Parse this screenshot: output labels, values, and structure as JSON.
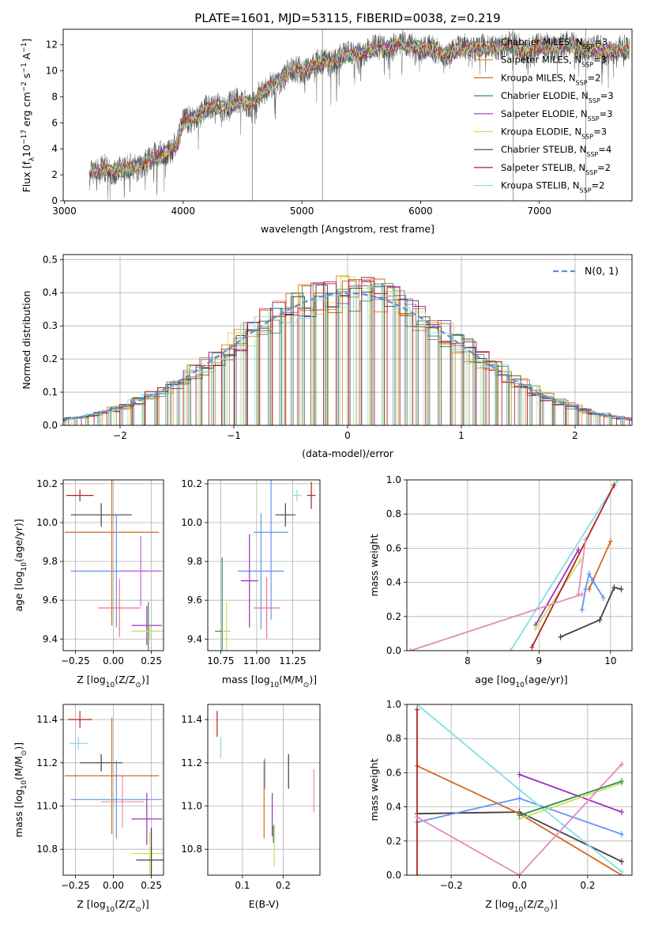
{
  "figure": {
    "title": "PLATE=1601, MJD=53115, FIBERID=0038, z=0.219"
  },
  "legend_labels": [
    "Chabrier MILES, N",
    "Salpeter MILES, N",
    "Kroupa MILES, N",
    "Chabrier ELODIE, N",
    "Salpeter ELODIE, N",
    "Kroupa ELODIE, N",
    "Chabrier STELIB, N",
    "Salpeter STELIB, N",
    "Kroupa STELIB, N"
  ],
  "legend_sub": "SSP",
  "legend_nssp": [
    "=3",
    "=3",
    "=2",
    "=3",
    "=3",
    "=3",
    "=4",
    "=2",
    "=2"
  ],
  "model_colors": [
    "#808080",
    "#ff7f0e",
    "#d2691e",
    "#2e8b57",
    "#9b30c0",
    "#c8e05a",
    "#404040",
    "#b22222",
    "#87dce8"
  ],
  "chart_data": [
    {
      "type": "line",
      "panel": "spectrum",
      "xlabel": "wavelength [Angstrom, rest frame]",
      "ylabel": "Flux [f",
      "ylabel_rest": "10",
      "ylabel_exp": "−17",
      "ylabel_unit": " erg cm",
      "ylabel_unit_exp": "−2",
      "ylabel_unit2": " s",
      "ylabel_unit2_exp": "−1",
      "ylabel_unit3": " A",
      "ylabel_unit3_exp": "−1",
      "xlim": [
        2990,
        7780
      ],
      "ylim": [
        0,
        13.2
      ],
      "xticks": [
        "3000",
        "4000",
        "5000",
        "6000",
        "7000"
      ],
      "yticks": [
        "0",
        "2",
        "4",
        "6",
        "8",
        "10",
        "12"
      ],
      "x": [
        3200,
        3350,
        3500,
        3650,
        3800,
        3950,
        4000,
        4150,
        4300,
        4450,
        4600,
        4750,
        4900,
        5050,
        5200,
        5350,
        5500,
        5650,
        5800,
        5950,
        6100,
        6250,
        6400,
        6550,
        6700,
        6850,
        7000,
        7150,
        7300,
        7450
      ],
      "values": [
        2.0,
        2.5,
        2.3,
        2.8,
        3.5,
        4.3,
        6.0,
        6.8,
        7.3,
        7.5,
        7.7,
        9.0,
        9.8,
        10.3,
        10.6,
        11.1,
        11.4,
        11.7,
        12.0,
        11.9,
        11.5,
        11.3,
        11.9,
        11.6,
        12.0,
        11.7,
        11.8,
        12.0,
        11.9,
        11.6
      ]
    },
    {
      "type": "bar",
      "panel": "residuals",
      "xlabel": "(data-model)/error",
      "ylabel": "Normed distribution",
      "xlim": [
        -2.5,
        2.5
      ],
      "ylim": [
        0,
        0.515
      ],
      "xticks": [
        "−2",
        "−1",
        "0",
        "1",
        "2"
      ],
      "yticks": [
        "0.0",
        "0.1",
        "0.2",
        "0.3",
        "0.4",
        "0.5"
      ],
      "reference_label": "N(0, 1)",
      "reference": "normal pdf, mean 0, sigma 1"
    },
    {
      "type": "scatter",
      "panel": "age_vs_Z",
      "xlabel": "Z [log",
      "xlabel_sub": "10",
      "xlabel_rest": "(Z/Z",
      "xlabel_sun": "⊙",
      "xlabel_end": ")]",
      "ylabel": "age  [log",
      "ylabel_sub": "10",
      "ylabel_rest": "(age/yr)]",
      "xlim": [
        -0.33,
        0.33
      ],
      "ylim": [
        9.34,
        10.22
      ],
      "xticks": [
        "−0.25",
        "0.00",
        "0.25"
      ],
      "yticks": [
        "9.4",
        "9.6",
        "9.8",
        "10.0",
        "10.2"
      ],
      "points": [
        {
          "x": -0.22,
          "xerr": 0.09,
          "y": 10.14,
          "yerr": 0.03
        },
        {
          "x": -0.08,
          "xerr": 0.2,
          "y": 10.04,
          "yerr": 0.06
        },
        {
          "x": -0.01,
          "xerr": 0.31,
          "y": 9.95,
          "yerr": 0.48
        },
        {
          "x": 0.02,
          "xerr": 0.3,
          "y": 9.75,
          "yerr": 0.29
        },
        {
          "x": 0.04,
          "xerr": 0.14,
          "y": 9.56,
          "yerr": 0.15
        },
        {
          "x": 0.18,
          "xerr": 0.13,
          "y": 9.75,
          "yerr": 0.18
        },
        {
          "x": 0.22,
          "xerr": 0.1,
          "y": 9.47,
          "yerr": 0.1
        },
        {
          "x": 0.23,
          "xerr": 0.08,
          "y": 9.44,
          "yerr": 0.15
        },
        {
          "x": 0.24,
          "xerr": 0.12,
          "y": 9.44,
          "yerr": 0.04
        }
      ],
      "point_colors": [
        "#b22222",
        "#404040",
        "#d2691e",
        "#6495ed",
        "#ff6b8a",
        "#c060e0",
        "#9b30c0",
        "#2e8b57",
        "#c8e05a"
      ]
    },
    {
      "type": "scatter",
      "panel": "age_vs_mass",
      "xlabel": "mass [log",
      "xlabel_sub": "10",
      "xlabel_rest": "(M/M",
      "xlabel_sun": "⊙",
      "xlabel_end": ")]",
      "xlim": [
        10.66,
        11.44
      ],
      "ylim": [
        9.34,
        10.22
      ],
      "xticks": [
        "10.75",
        "11.00",
        "11.25"
      ],
      "yticks": [
        "9.4",
        "9.6",
        "9.8",
        "10.0",
        "10.2"
      ],
      "points": [
        {
          "x": 11.38,
          "xerr": 0.03,
          "y": 10.14,
          "yerr": 0.07
        },
        {
          "x": 11.2,
          "xerr": 0.07,
          "y": 10.04,
          "yerr": 0.06
        },
        {
          "x": 11.28,
          "xerr": 0.03,
          "y": 10.14,
          "yerr": 0.03
        },
        {
          "x": 11.1,
          "xerr": 0.12,
          "y": 9.95,
          "yerr": 0.45
        },
        {
          "x": 11.03,
          "xerr": 0.16,
          "y": 9.75,
          "yerr": 0.3
        },
        {
          "x": 11.07,
          "xerr": 0.09,
          "y": 9.56,
          "yerr": 0.16
        },
        {
          "x": 10.95,
          "xerr": 0.06,
          "y": 9.7,
          "yerr": 0.24
        },
        {
          "x": 10.76,
          "xerr": 0.05,
          "y": 9.44,
          "yerr": 0.38
        },
        {
          "x": 10.79,
          "xerr": 0.03,
          "y": 9.44,
          "yerr": 0.15
        }
      ],
      "point_colors": [
        "#b22222",
        "#404040",
        "#87dce8",
        "#6495ed",
        "#6495ed",
        "#ff6b8a",
        "#9b30c0",
        "#2e8b57",
        "#c8e05a"
      ]
    },
    {
      "type": "line",
      "panel": "massweight_vs_age",
      "xlabel": "age  [log",
      "xlabel_sub": "10",
      "xlabel_rest": "(age/yr)]",
      "ylabel": "mass weight",
      "xlim": [
        7.15,
        10.3
      ],
      "ylim": [
        0,
        1
      ],
      "xticks": [
        "8",
        "9",
        "10"
      ],
      "yticks": [
        "0.0",
        "0.2",
        "0.4",
        "0.6",
        "0.8",
        "1.0"
      ],
      "series": [
        {
          "x": [
            9.3,
            9.85,
            10.05,
            10.15
          ],
          "values": [
            0.08,
            0.18,
            0.37,
            0.36
          ]
        },
        {
          "x": [
            9.7,
            10.0
          ],
          "values": [
            0.36,
            0.64
          ]
        },
        {
          "x": [
            9.6,
            9.65,
            9.7,
            9.75,
            9.9
          ],
          "values": [
            0.24,
            0.36,
            0.45,
            0.41,
            0.31
          ]
        },
        {
          "x": [
            8.95,
            9.55
          ],
          "values": [
            0.15,
            0.59
          ]
        },
        {
          "x": [
            8.95,
            9.58
          ],
          "values": [
            0.13,
            0.53
          ]
        },
        {
          "x": [
            8.6,
            10.1
          ],
          "values": [
            0.0,
            1.0
          ]
        },
        {
          "x": [
            8.9,
            10.05
          ],
          "values": [
            0.02,
            0.97
          ]
        },
        {
          "x": [
            7.2,
            9.6
          ],
          "values": [
            0.0,
            0.33
          ]
        },
        {
          "x": [
            9.55,
            9.65
          ],
          "values": [
            0.33,
            0.65
          ]
        }
      ],
      "series_colors": [
        "#404040",
        "#d2691e",
        "#6495ed",
        "#9b30c0",
        "#c8e05a",
        "#87dce8",
        "#b22222",
        "#e38cb8",
        "#e38cb8"
      ]
    },
    {
      "type": "scatter",
      "panel": "mass_vs_Z",
      "xlabel": "Z [log",
      "xlabel_sub": "10",
      "xlabel_rest": "(Z/Z",
      "xlabel_sun": "⊙",
      "xlabel_end": ")]",
      "ylabel": "mass [log",
      "ylabel_sub": "10",
      "ylabel_rest": "(M/M",
      "ylabel_sun": "⊙",
      "ylabel_end": ")]",
      "xlim": [
        -0.33,
        0.33
      ],
      "ylim": [
        10.68,
        11.47
      ],
      "xticks": [
        "−0.25",
        "0.00",
        "0.25"
      ],
      "yticks": [
        "10.8",
        "11.0",
        "11.2",
        "11.4"
      ],
      "points": [
        {
          "x": -0.22,
          "xerr": 0.08,
          "y": 11.4,
          "yerr": 0.04
        },
        {
          "x": -0.23,
          "xerr": 0.06,
          "y": 11.29,
          "yerr": 0.03
        },
        {
          "x": -0.08,
          "xerr": 0.14,
          "y": 11.2,
          "yerr": 0.04
        },
        {
          "x": -0.01,
          "xerr": 0.31,
          "y": 11.14,
          "yerr": 0.27
        },
        {
          "x": 0.02,
          "xerr": 0.3,
          "y": 11.03,
          "yerr": 0.18
        },
        {
          "x": 0.06,
          "xerr": 0.14,
          "y": 11.02,
          "yerr": 0.12
        },
        {
          "x": 0.22,
          "xerr": 0.1,
          "y": 10.94,
          "yerr": 0.12
        },
        {
          "x": 0.24,
          "xerr": 0.12,
          "y": 10.78,
          "yerr": 0.1
        },
        {
          "x": 0.25,
          "xerr": 0.1,
          "y": 10.75,
          "yerr": 0.15
        }
      ],
      "point_colors": [
        "#b22222",
        "#87dce8",
        "#404040",
        "#d2691e",
        "#6495ed",
        "#e38cb8",
        "#9b30c0",
        "#c8e05a",
        "#404040"
      ]
    },
    {
      "type": "scatter",
      "panel": "mass_vs_EBV",
      "xlabel": "E(B-V)",
      "xlim": [
        0.015,
        0.29
      ],
      "ylim": [
        10.68,
        11.47
      ],
      "xticks": [
        "0.1",
        "0.2"
      ],
      "yticks": [
        "10.8",
        "11.0",
        "11.2",
        "11.4"
      ],
      "points": [
        {
          "x": 0.038,
          "y": 11.38,
          "yerr": 0.06
        },
        {
          "x": 0.047,
          "y": 11.27,
          "yerr": 0.05
        },
        {
          "x": 0.153,
          "y": 11.03,
          "yerr": 0.18
        },
        {
          "x": 0.155,
          "y": 11.15,
          "yerr": 0.07
        },
        {
          "x": 0.173,
          "y": 10.96,
          "yerr": 0.1
        },
        {
          "x": 0.178,
          "y": 10.82,
          "yerr": 0.1
        },
        {
          "x": 0.176,
          "y": 10.87,
          "yerr": 0.04
        },
        {
          "x": 0.213,
          "y": 11.16,
          "yerr": 0.08
        },
        {
          "x": 0.275,
          "y": 11.07,
          "yerr": 0.1
        }
      ],
      "point_colors": [
        "#b22222",
        "#87dce8",
        "#d2691e",
        "#6495ed",
        "#9b30c0",
        "#c8e05a",
        "#2e8b57",
        "#404040",
        "#e38cb8"
      ]
    },
    {
      "type": "line",
      "panel": "massweight_vs_Z",
      "xlabel": "Z [log",
      "xlabel_sub": "10",
      "xlabel_rest": "(Z/Z",
      "xlabel_sun": "⊙",
      "xlabel_end": ")]",
      "ylabel": "mass weight",
      "xlim": [
        -0.33,
        0.33
      ],
      "ylim": [
        0,
        1
      ],
      "xticks": [
        "−0.2",
        "0.0",
        "0.2"
      ],
      "yticks": [
        "0.0",
        "0.2",
        "0.4",
        "0.6",
        "0.8",
        "1.0"
      ],
      "series": [
        {
          "x": [
            -0.3,
            0.0,
            0.3
          ],
          "values": [
            0.36,
            0.37,
            0.08
          ]
        },
        {
          "x": [
            -0.3,
            0.0,
            0.3
          ],
          "values": [
            0.64,
            0.36,
            0.0
          ]
        },
        {
          "x": [
            -0.3,
            0.0,
            0.3
          ],
          "values": [
            0.31,
            0.45,
            0.24
          ]
        },
        {
          "x": [
            0.0,
            0.3
          ],
          "values": [
            0.59,
            0.37
          ]
        },
        {
          "x": [
            0.0,
            0.3
          ],
          "values": [
            0.33,
            0.54
          ]
        },
        {
          "x": [
            -0.3,
            0.0,
            0.3
          ],
          "values": [
            1.0,
            0.5,
            0.02
          ]
        },
        {
          "x": [
            -0.3,
            -0.3
          ],
          "values": [
            0.0,
            0.97
          ]
        },
        {
          "x": [
            -0.3,
            0.0,
            0.3
          ],
          "values": [
            0.34,
            0.0,
            0.65
          ]
        },
        {
          "x": [
            0.0,
            0.3
          ],
          "values": [
            0.35,
            0.55
          ]
        }
      ],
      "series_colors": [
        "#404040",
        "#d2691e",
        "#6495ed",
        "#9b30c0",
        "#c8e05a",
        "#87dce8",
        "#b22222",
        "#e38cb8",
        "#2e8b57"
      ]
    }
  ]
}
